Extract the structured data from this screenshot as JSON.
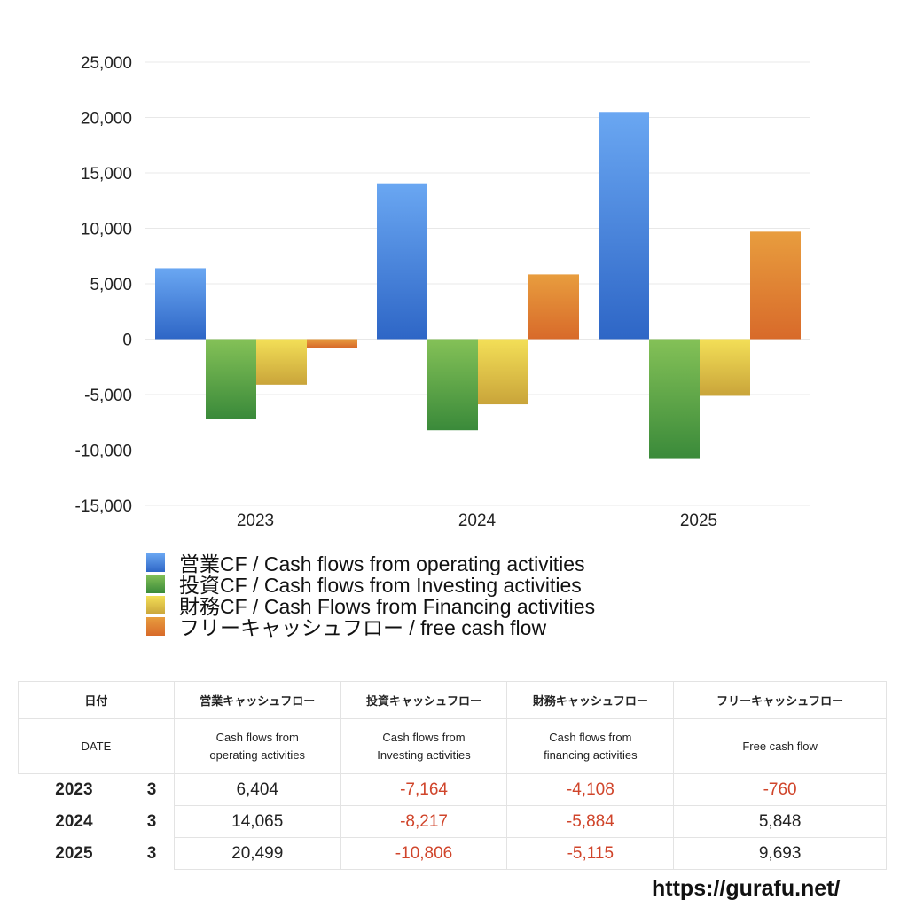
{
  "chart_data": {
    "type": "bar",
    "title": "",
    "xlabel": "",
    "ylabel": "",
    "categories": [
      "2023",
      "2024",
      "2025"
    ],
    "ylim": [
      -15000,
      25000
    ],
    "yticks": [
      25000,
      20000,
      15000,
      10000,
      5000,
      0,
      -5000,
      -10000,
      -15000
    ],
    "ytick_labels": [
      "25,000",
      "20,000",
      "15,000",
      "10,000",
      "5,000",
      "0",
      "-5,000",
      "-10,000",
      "-15,000"
    ],
    "grid": true,
    "legend_position": "bottom",
    "series": [
      {
        "name": "営業CF / Cash flows from operating activities",
        "values": [
          6404,
          14065,
          20499
        ],
        "color_top": "#6aa7f2",
        "color_bottom": "#2e66c6"
      },
      {
        "name": "投資CF / Cash flows from Investing activities",
        "values": [
          -7164,
          -8217,
          -10806
        ],
        "color_top": "#84c157",
        "color_bottom": "#3a8a3a"
      },
      {
        "name": "財務CF / Cash Flows from Financing activities",
        "values": [
          -4108,
          -5884,
          -5115
        ],
        "color_top": "#f3df57",
        "color_bottom": "#c9a43a"
      },
      {
        "name": "フリーキャッシュフロー / free cash flow",
        "values": [
          -760,
          5848,
          9693
        ],
        "color_top": "#e89d3e",
        "color_bottom": "#d86a2a"
      }
    ]
  },
  "table": {
    "header_jp": [
      "日付",
      "営業キャッシュフロー",
      "投資キャッシュフロー",
      "財務キャッシュフロー",
      "フリーキャッシュフロー"
    ],
    "header_en": [
      "DATE",
      "Cash flows from\noperating activities",
      "Cash flows from\nInvesting activities",
      "Cash flows from\nfinancing activities",
      "Free cash flow"
    ],
    "rows": [
      {
        "year": "2023",
        "month": "3",
        "operating": "6,404",
        "investing": "-7,164",
        "financing": "-4,108",
        "free": "-760"
      },
      {
        "year": "2024",
        "month": "3",
        "operating": "14,065",
        "investing": "-8,217",
        "financing": "-5,884",
        "free": "5,848"
      },
      {
        "year": "2025",
        "month": "3",
        "operating": "20,499",
        "investing": "-10,806",
        "financing": "-5,115",
        "free": "9,693"
      }
    ],
    "negative_color": "#d0452b"
  },
  "footer": {
    "url": "https://gurafu.net/"
  }
}
